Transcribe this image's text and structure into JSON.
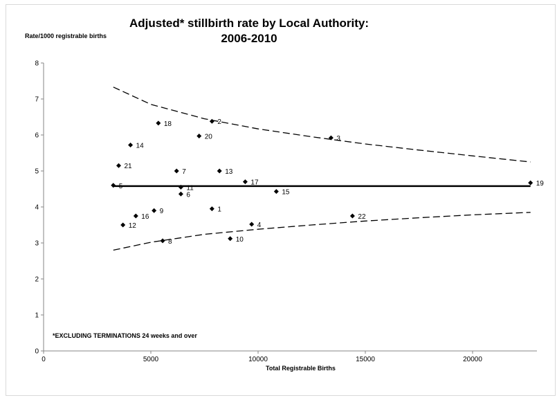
{
  "chart_data": {
    "type": "scatter",
    "title_line1": "Adjusted* stillbirth rate by Local Authority:",
    "title_line2": "2006-2010",
    "xlabel": "Total Registrable Births",
    "ylabel": "Rate/1000 registrable births",
    "footnote": "*EXCLUDING TERMINATIONS 24 weeks and over",
    "xlim": [
      0,
      23000
    ],
    "ylim": [
      0,
      8
    ],
    "x_ticks": [
      0,
      5000,
      10000,
      15000,
      20000
    ],
    "y_ticks": [
      0,
      1,
      2,
      3,
      4,
      5,
      6,
      7,
      8
    ],
    "grid": false,
    "points": [
      {
        "label": "1",
        "x": 7850,
        "y": 3.95
      },
      {
        "label": "2",
        "x": 7850,
        "y": 6.38
      },
      {
        "label": "3",
        "x": 13400,
        "y": 5.92
      },
      {
        "label": "4",
        "x": 9700,
        "y": 3.52
      },
      {
        "label": "5",
        "x": 3250,
        "y": 4.6
      },
      {
        "label": "6",
        "x": 6400,
        "y": 4.36
      },
      {
        "label": "7",
        "x": 6200,
        "y": 5.0
      },
      {
        "label": "8",
        "x": 5550,
        "y": 3.06
      },
      {
        "label": "9",
        "x": 5150,
        "y": 3.9
      },
      {
        "label": "10",
        "x": 8700,
        "y": 3.12
      },
      {
        "label": "11",
        "x": 6400,
        "y": 4.55
      },
      {
        "label": "12",
        "x": 3700,
        "y": 3.5
      },
      {
        "label": "13",
        "x": 8200,
        "y": 5.0
      },
      {
        "label": "14",
        "x": 4050,
        "y": 5.72
      },
      {
        "label": "15",
        "x": 10850,
        "y": 4.43
      },
      {
        "label": "16",
        "x": 4300,
        "y": 3.75
      },
      {
        "label": "17",
        "x": 9400,
        "y": 4.7
      },
      {
        "label": "18",
        "x": 5350,
        "y": 6.33
      },
      {
        "label": "19",
        "x": 22700,
        "y": 4.67
      },
      {
        "label": "20",
        "x": 7250,
        "y": 5.97
      },
      {
        "label": "21",
        "x": 3500,
        "y": 5.15
      },
      {
        "label": "22",
        "x": 14400,
        "y": 3.75
      }
    ],
    "mean_line": {
      "x": [
        3250,
        22700
      ],
      "y": 4.58
    },
    "upper_limit": {
      "x": [
        3250,
        5000,
        7500,
        10000,
        12500,
        15000,
        17500,
        20000,
        22700
      ],
      "y": [
        7.33,
        6.85,
        6.45,
        6.17,
        5.95,
        5.75,
        5.58,
        5.42,
        5.25
      ]
    },
    "lower_limit": {
      "x": [
        3250,
        5000,
        7500,
        10000,
        12500,
        15000,
        17500,
        20000,
        22700
      ],
      "y": [
        2.8,
        3.02,
        3.24,
        3.38,
        3.5,
        3.61,
        3.7,
        3.78,
        3.85
      ]
    }
  }
}
